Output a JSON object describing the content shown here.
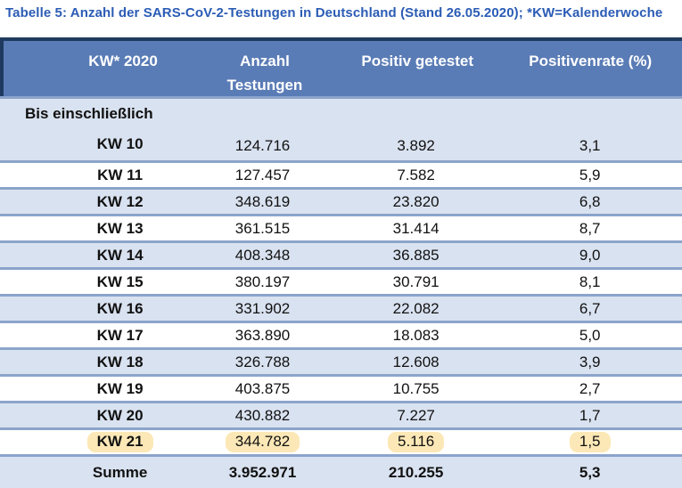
{
  "title": "Tabelle 5: Anzahl der SARS-CoV-2-Testungen in Deutschland (Stand 26.05.2020); *KW=Kalenderwoche",
  "colors": {
    "title_text": "#2b5cb5",
    "header_bg": "#5a7cb6",
    "header_text": "#ffffff",
    "dark_border": "#1e3a5f",
    "row_separator": "#8ba4cb",
    "row_alt_bg": "#d9e2f0",
    "highlight_bg": "#fce8b6"
  },
  "table": {
    "header": {
      "col1": "KW* 2020",
      "col2_line1": "Anzahl",
      "col2_line2": "Testungen",
      "col3": "Positiv getestet",
      "col4": "Positivenrate (%)"
    },
    "first_row": {
      "prefix": "Bis einschließlich",
      "kw": "KW 10",
      "tests": "124.716",
      "positive": "3.892",
      "rate": "3,1"
    },
    "rows": [
      {
        "kw": "KW 11",
        "tests": "127.457",
        "positive": "7.582",
        "rate": "5,9"
      },
      {
        "kw": "KW 12",
        "tests": "348.619",
        "positive": "23.820",
        "rate": "6,8"
      },
      {
        "kw": "KW 13",
        "tests": "361.515",
        "positive": "31.414",
        "rate": "8,7"
      },
      {
        "kw": "KW 14",
        "tests": "408.348",
        "positive": "36.885",
        "rate": "9,0"
      },
      {
        "kw": "KW 15",
        "tests": "380.197",
        "positive": "30.791",
        "rate": "8,1"
      },
      {
        "kw": "KW 16",
        "tests": "331.902",
        "positive": "22.082",
        "rate": "6,7"
      },
      {
        "kw": "KW 17",
        "tests": "363.890",
        "positive": "18.083",
        "rate": "5,0"
      },
      {
        "kw": "KW 18",
        "tests": "326.788",
        "positive": "12.608",
        "rate": "3,9"
      },
      {
        "kw": "KW 19",
        "tests": "403.875",
        "positive": "10.755",
        "rate": "2,7"
      },
      {
        "kw": "KW 20",
        "tests": "430.882",
        "positive": "7.227",
        "rate": "1,7"
      },
      {
        "kw": "KW 21",
        "tests": "344.782",
        "positive": "5.116",
        "rate": "1,5",
        "highlight": true
      }
    ],
    "total_row": {
      "kw": "Summe",
      "tests": "3.952.971",
      "positive": "210.255",
      "rate": "5,3"
    }
  }
}
